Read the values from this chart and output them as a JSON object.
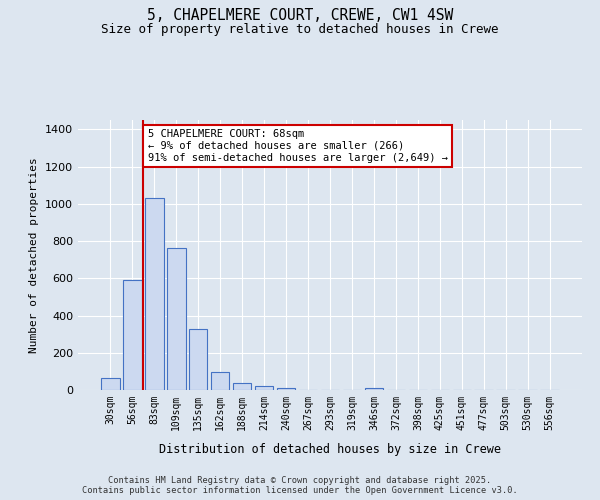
{
  "title": "5, CHAPELMERE COURT, CREWE, CW1 4SW",
  "subtitle": "Size of property relative to detached houses in Crewe",
  "xlabel": "Distribution of detached houses by size in Crewe",
  "ylabel": "Number of detached properties",
  "categories": [
    "30sqm",
    "56sqm",
    "83sqm",
    "109sqm",
    "135sqm",
    "162sqm",
    "188sqm",
    "214sqm",
    "240sqm",
    "267sqm",
    "293sqm",
    "319sqm",
    "346sqm",
    "372sqm",
    "398sqm",
    "425sqm",
    "451sqm",
    "477sqm",
    "503sqm",
    "530sqm",
    "556sqm"
  ],
  "values": [
    65,
    590,
    1030,
    765,
    325,
    95,
    38,
    22,
    12,
    0,
    0,
    0,
    12,
    0,
    0,
    0,
    0,
    0,
    0,
    0,
    0
  ],
  "bar_color": "#ccd9f0",
  "bar_edge_color": "#4472c4",
  "bar_edge_width": 0.8,
  "red_line_color": "#cc0000",
  "red_line_x": 1.5,
  "annotation_text": "5 CHAPELMERE COURT: 68sqm\n← 9% of detached houses are smaller (266)\n91% of semi-detached houses are larger (2,649) →",
  "annotation_box_facecolor": "#ffffff",
  "annotation_box_edgecolor": "#cc0000",
  "ylim": [
    0,
    1450
  ],
  "yticks": [
    0,
    200,
    400,
    600,
    800,
    1000,
    1200,
    1400
  ],
  "background_color": "#dde6f0",
  "grid_color": "#ffffff",
  "footer_line1": "Contains HM Land Registry data © Crown copyright and database right 2025.",
  "footer_line2": "Contains public sector information licensed under the Open Government Licence v3.0."
}
